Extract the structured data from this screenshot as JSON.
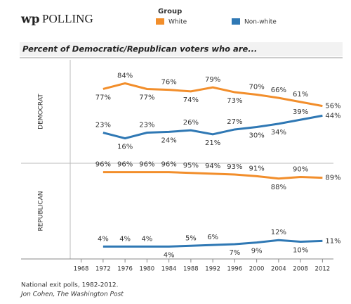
{
  "logo_mark": "wp",
  "logo_text": "POLLING",
  "legend_title": "Group",
  "subtitle": "Percent of Democratic/Republican voters who are...",
  "notes": [
    "National exit polls, 1982-2012.",
    "Jon Cohen, The Washington Post"
  ],
  "chart_data": [
    {
      "type": "line",
      "panel": "DEMOCRAT",
      "x": [
        1972,
        1976,
        1980,
        1984,
        1988,
        1992,
        1996,
        2000,
        2004,
        2008,
        2012
      ],
      "xlim": [
        1966,
        2014
      ],
      "ylim": [
        0,
        100
      ],
      "series": [
        {
          "name": "White",
          "color": "#f28e2b",
          "values": [
            77,
            84,
            77,
            76,
            74,
            79,
            73,
            70,
            66,
            61,
            56
          ],
          "value_labels": [
            "77%",
            "84%",
            "77%",
            "76%",
            "74%",
            "79%",
            "73%",
            "70%",
            "66%",
            "61%",
            "56%"
          ]
        },
        {
          "name": "Non-white",
          "color": "#2f78b4",
          "values": [
            23,
            16,
            23,
            24,
            26,
            21,
            27,
            30,
            34,
            39,
            44
          ],
          "value_labels": [
            "23%",
            "16%",
            "23%",
            "24%",
            "26%",
            "21%",
            "27%",
            "30%",
            "34%",
            "39%",
            "44%"
          ]
        }
      ]
    },
    {
      "type": "line",
      "panel": "REPUBLICAN",
      "x": [
        1972,
        1976,
        1980,
        1984,
        1988,
        1992,
        1996,
        2000,
        2004,
        2008,
        2012
      ],
      "xlim": [
        1966,
        2014
      ],
      "ylim": [
        0,
        100
      ],
      "xticks": [
        1968,
        1972,
        1976,
        1980,
        1984,
        1988,
        1992,
        1996,
        2000,
        2004,
        2008,
        2012
      ],
      "series": [
        {
          "name": "White",
          "color": "#f28e2b",
          "values": [
            96,
            96,
            96,
            96,
            95,
            94,
            93,
            91,
            88,
            90,
            89
          ],
          "value_labels": [
            "96%",
            "96%",
            "96%",
            "96%",
            "95%",
            "94%",
            "93%",
            "91%",
            "88%",
            "90%",
            "89%"
          ]
        },
        {
          "name": "Non-white",
          "color": "#2f78b4",
          "values": [
            4,
            4,
            4,
            4,
            5,
            6,
            7,
            9,
            12,
            10,
            11
          ],
          "value_labels": [
            "4%",
            "4%",
            "4%",
            "4%",
            "5%",
            "6%",
            "7%",
            "9%",
            "12%",
            "10%",
            "11%"
          ]
        }
      ]
    }
  ]
}
